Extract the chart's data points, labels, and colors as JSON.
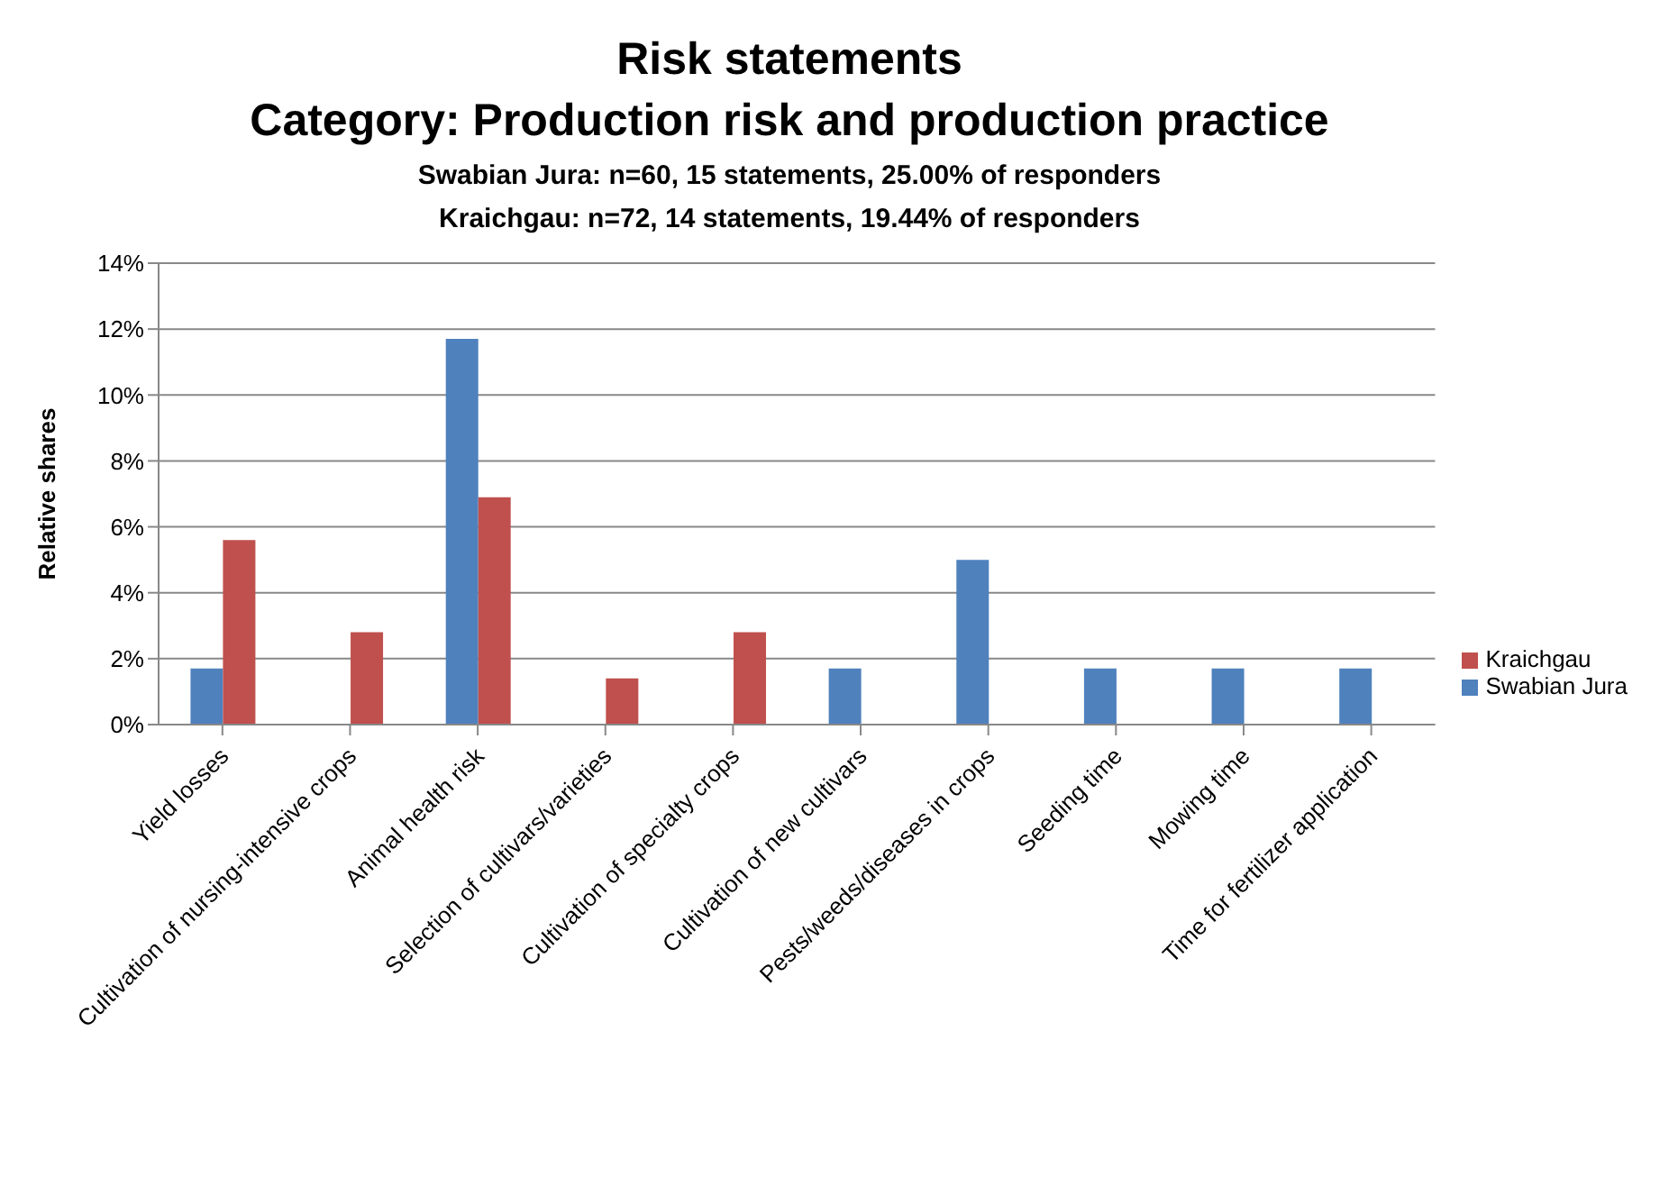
{
  "chart_data": {
    "type": "bar",
    "title": "Risk statements\nCategory: Production risk and production practice",
    "subtitle": "Swabian Jura: n=60, 15 statements, 25.00% of responders\nKraichgau: n=72, 14 statements, 19.44% of responders",
    "ylabel": "Relative shares",
    "categories": [
      "Yield losses",
      "Cultivation of nursing-intensive crops",
      "Animal health risk",
      "Selection of cultivars/varieties",
      "Cultivation of specialty crops",
      "Cultivation of new cultivars",
      "Pests/weeds/diseases in crops",
      "Seeding time",
      "Mowing time",
      "Time for fertilizer application"
    ],
    "series": [
      {
        "name": "Swabian Jura",
        "color": "#4f81bd",
        "values": [
          1.7,
          null,
          11.7,
          null,
          null,
          1.7,
          5.0,
          1.7,
          1.7,
          1.7
        ]
      },
      {
        "name": "Kraichgau",
        "color": "#c0504d",
        "values": [
          5.6,
          2.8,
          6.9,
          1.4,
          2.8,
          null,
          null,
          null,
          null,
          null
        ]
      }
    ],
    "ylim": [
      0,
      14
    ],
    "yticks": [
      {
        "value": 0,
        "label": "0%"
      },
      {
        "value": 2,
        "label": "2%"
      },
      {
        "value": 4,
        "label": "4%"
      },
      {
        "value": 6,
        "label": "6%"
      },
      {
        "value": 8,
        "label": "8%"
      },
      {
        "value": 10,
        "label": "10%"
      },
      {
        "value": 12,
        "label": "12%"
      },
      {
        "value": 14,
        "label": "14%"
      }
    ],
    "grid": "y",
    "legend": "right"
  }
}
